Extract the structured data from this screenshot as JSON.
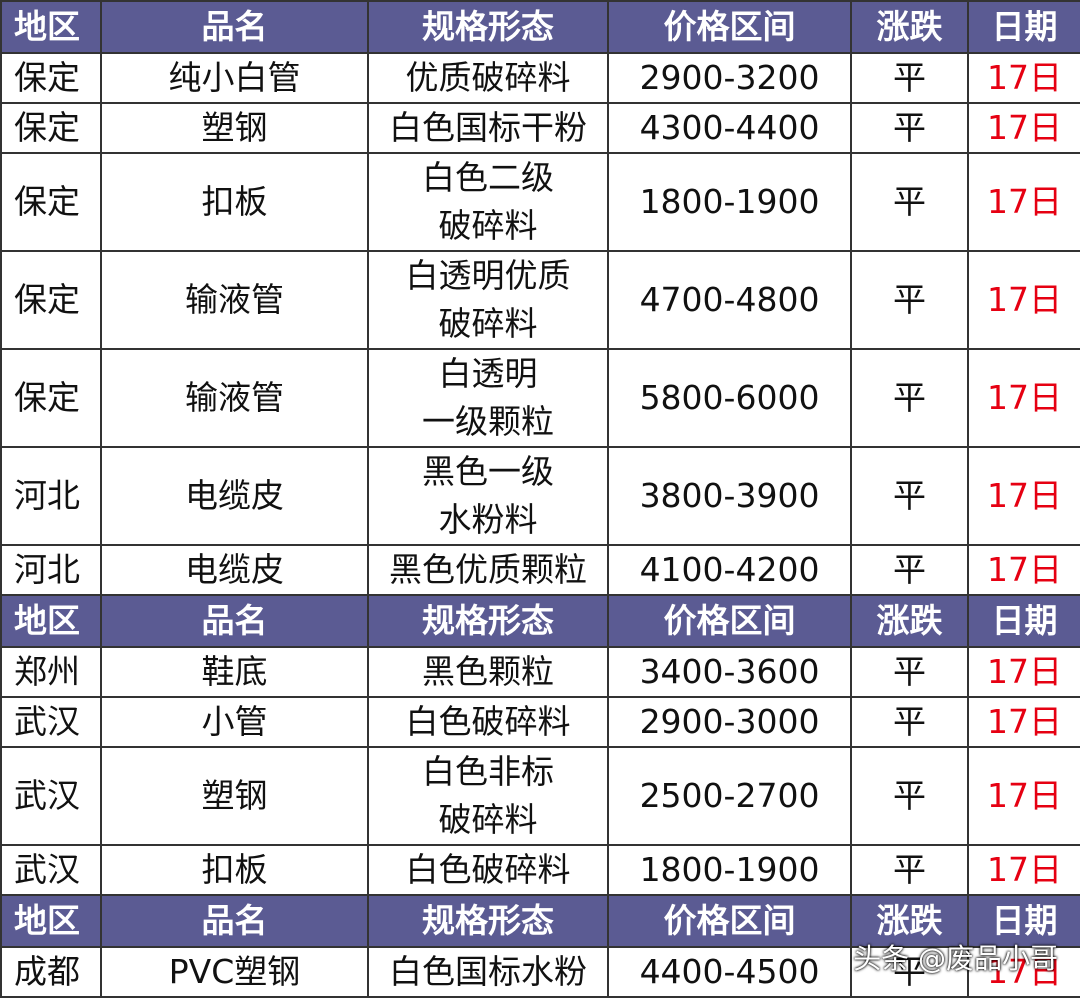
{
  "sections": [
    {
      "header": [
        "地区",
        "品名",
        "规格形态",
        "价格区间",
        "涨跌",
        "日期"
      ],
      "rows": [
        [
          "保定",
          "纯小白管",
          "优质破碎料",
          "2900-3200",
          "平",
          "17日"
        ],
        [
          "保定",
          "塑钢",
          "白色国标干粉",
          "4300-4400",
          "平",
          "17日"
        ],
        [
          "保定",
          "扣板",
          "白色二级\n破碎料",
          "1800-1900",
          "平",
          "17日"
        ],
        [
          "保定",
          "输液管",
          "白透明优质\n破碎料",
          "4700-4800",
          "平",
          "17日"
        ],
        [
          "保定",
          "输液管",
          "白透明\n一级颗粒",
          "5800-6000",
          "平",
          "17日"
        ],
        [
          "河北",
          "电缆皮",
          "黑色一级\n水粉料",
          "3800-3900",
          "平",
          "17日"
        ],
        [
          "河北",
          "电缆皮",
          "黑色优质颗粒",
          "4100-4200",
          "平",
          "17日"
        ]
      ]
    },
    {
      "header": [
        "地区",
        "品名",
        "规格形态",
        "价格区间",
        "涨跌",
        "日期"
      ],
      "rows": [
        [
          "郑州",
          "鞋底",
          "黑色颗粒",
          "3400-3600",
          "平",
          "17日"
        ],
        [
          "武汉",
          "小管",
          "白色破碎料",
          "2900-3000",
          "平",
          "17日"
        ],
        [
          "武汉",
          "塑钢",
          "白色非标\n破碎料",
          "2500-2700",
          "平",
          "17日"
        ],
        [
          "武汉",
          "扣板",
          "白色破碎料",
          "1800-1900",
          "平",
          "17日"
        ]
      ]
    },
    {
      "header": [
        "地区",
        "品名",
        "规格形态",
        "价格区间",
        "涨跌",
        "日期"
      ],
      "rows": [
        [
          "成都",
          "PVC塑钢",
          "白色国标水粉",
          "4400-4500",
          "平",
          "17日"
        ]
      ]
    }
  ],
  "watermark": "头条 @废品小哥"
}
